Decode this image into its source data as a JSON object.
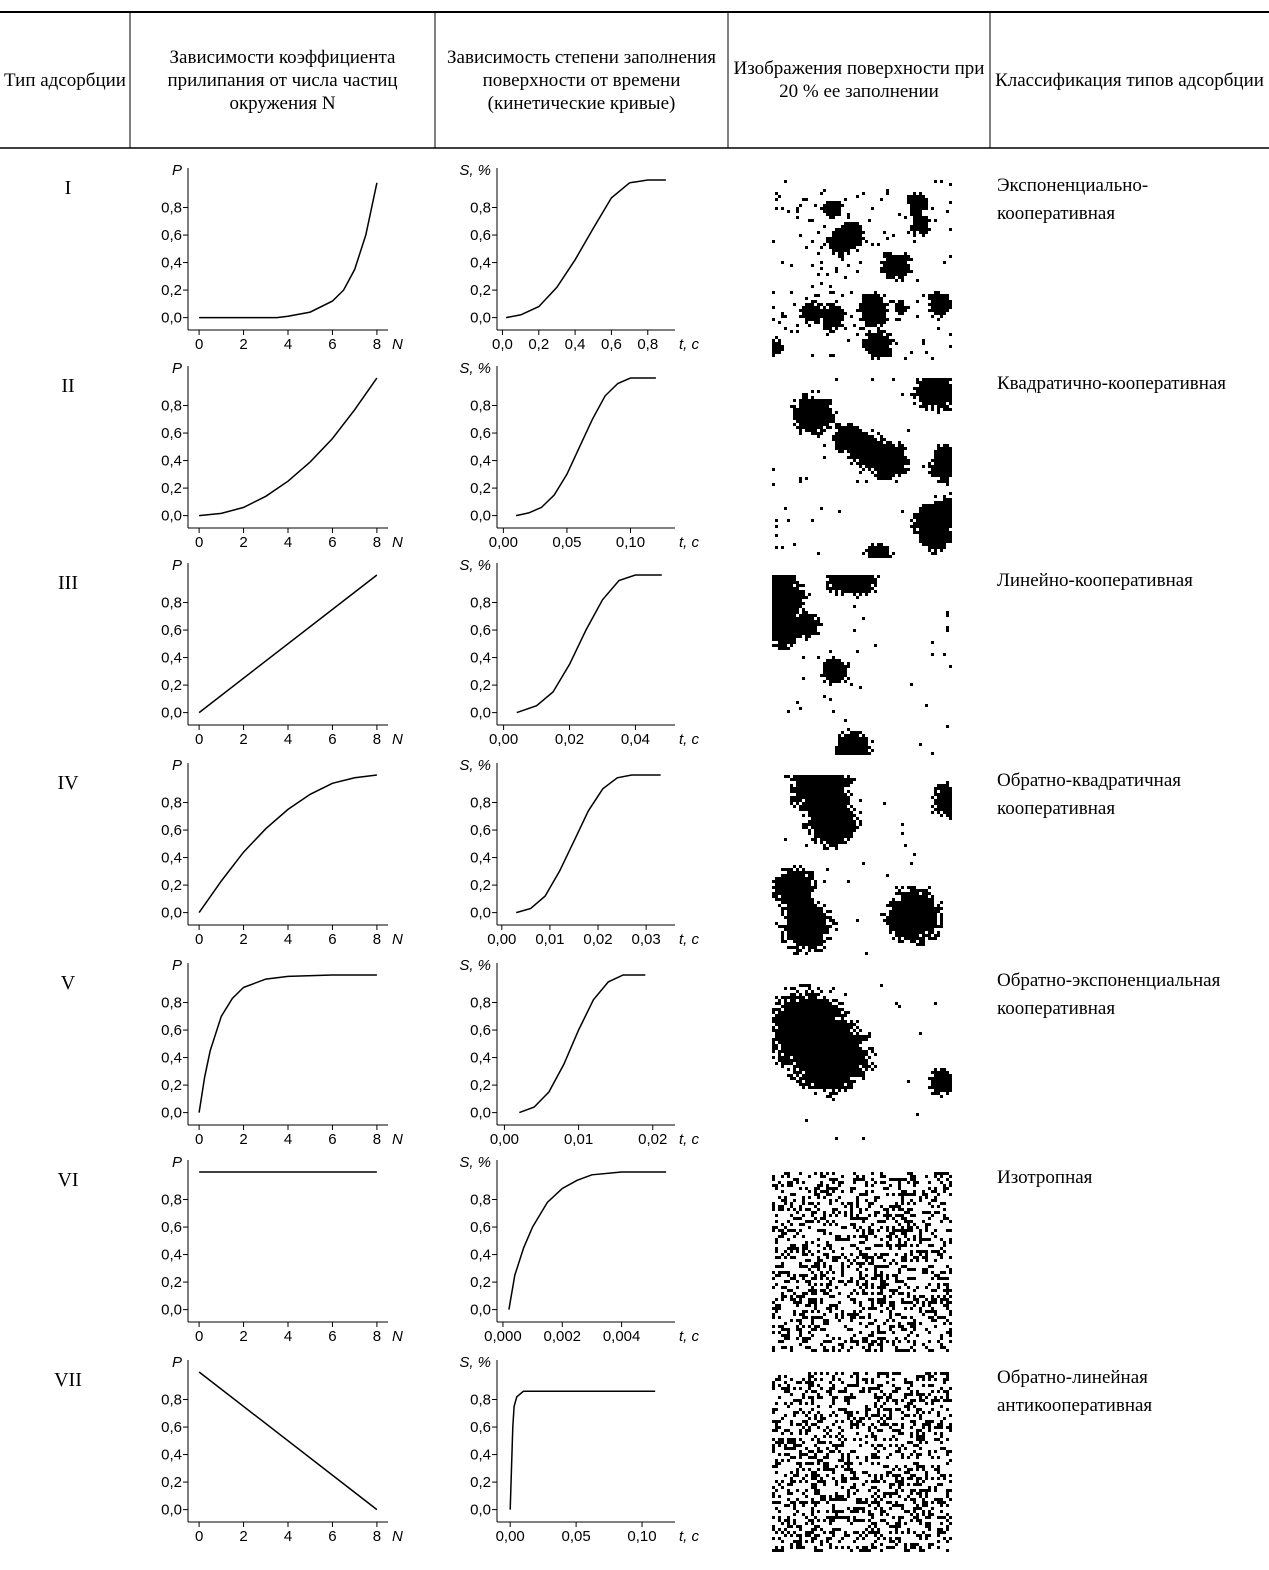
{
  "table": {
    "headers": [
      "Тип адсорбции",
      "Зависимости коэффициента прилипания от числа частиц окружения N",
      "Зависимость степени заполнения поверхности от времени (кинетические кривые)",
      "Изображения поверхности при 20 % ее заполнении",
      "Классификация типов адсорбции"
    ],
    "rows": [
      {
        "type": "I",
        "classification": "Экспоненциально-кооперативная",
        "p_chart": {
          "type": "line",
          "y_label": "P",
          "x_label": "N",
          "x": [
            0,
            2,
            3.5,
            4,
            5,
            6,
            6.5,
            7,
            7.5,
            8
          ],
          "values": [
            0,
            0,
            0,
            0.01,
            0.04,
            0.12,
            0.2,
            0.35,
            0.6,
            0.98
          ],
          "xlim": [
            -0.5,
            8.5
          ],
          "ylim": [
            -0.09,
            1.0
          ],
          "xticks": [
            0,
            2,
            4,
            6,
            8
          ],
          "yticks": [
            {
              "value": 0,
              "label": "0,0"
            },
            {
              "value": 0.2,
              "label": "0,2"
            },
            {
              "value": 0.4,
              "label": "0,4"
            },
            {
              "value": 0.6,
              "label": "0,6"
            },
            {
              "value": 0.8,
              "label": "0,8"
            }
          ]
        },
        "s_chart": {
          "type": "line",
          "y_label": "S, %",
          "x_label": "t, с",
          "x": [
            0.02,
            0.1,
            0.2,
            0.3,
            0.4,
            0.5,
            0.6,
            0.7,
            0.8,
            0.9
          ],
          "values": [
            0,
            0.02,
            0.08,
            0.22,
            0.42,
            0.65,
            0.87,
            0.98,
            1,
            1
          ],
          "xlim": [
            -0.03,
            0.95
          ],
          "ylim": [
            -0.09,
            1.0
          ],
          "xticks": [
            {
              "value": 0,
              "label": "0,0"
            },
            {
              "value": 0.2,
              "label": "0,2"
            },
            {
              "value": 0.4,
              "label": "0,4"
            },
            {
              "value": 0.6,
              "label": "0,6"
            },
            {
              "value": 0.8,
              "label": "0,8"
            }
          ],
          "yticks": [
            {
              "value": 0,
              "label": "0,0"
            },
            {
              "value": 0.2,
              "label": "0,2"
            },
            {
              "value": 0.4,
              "label": "0,4"
            },
            {
              "value": 0.6,
              "label": "0,6"
            },
            {
              "value": 0.8,
              "label": "0,8"
            }
          ]
        }
      },
      {
        "type": "II",
        "classification": "Квадратично-кооперативная",
        "p_chart": {
          "type": "line",
          "y_label": "P",
          "x_label": "N",
          "x": [
            0,
            1,
            2,
            3,
            4,
            5,
            6,
            7,
            8
          ],
          "values": [
            0,
            0.016,
            0.06,
            0.14,
            0.25,
            0.39,
            0.56,
            0.77,
            1.0
          ],
          "xlim": [
            -0.5,
            8.5
          ],
          "ylim": [
            -0.09,
            1.0
          ],
          "xticks": [
            0,
            2,
            4,
            6,
            8
          ],
          "yticks": [
            {
              "value": 0,
              "label": "0,0"
            },
            {
              "value": 0.2,
              "label": "0,2"
            },
            {
              "value": 0.4,
              "label": "0,4"
            },
            {
              "value": 0.6,
              "label": "0,6"
            },
            {
              "value": 0.8,
              "label": "0,8"
            }
          ]
        },
        "s_chart": {
          "type": "line",
          "y_label": "S, %",
          "x_label": "t, с",
          "x": [
            0.01,
            0.02,
            0.03,
            0.04,
            0.05,
            0.06,
            0.07,
            0.08,
            0.09,
            0.1,
            0.12
          ],
          "values": [
            0,
            0.02,
            0.06,
            0.15,
            0.3,
            0.5,
            0.7,
            0.87,
            0.96,
            1,
            1
          ],
          "xlim": [
            -0.005,
            0.135
          ],
          "ylim": [
            -0.09,
            1.0
          ],
          "xticks": [
            {
              "value": 0,
              "label": "0,00"
            },
            {
              "value": 0.05,
              "label": "0,05"
            },
            {
              "value": 0.1,
              "label": "0,10"
            }
          ],
          "yticks": [
            {
              "value": 0,
              "label": "0,0"
            },
            {
              "value": 0.2,
              "label": "0,2"
            },
            {
              "value": 0.4,
              "label": "0,4"
            },
            {
              "value": 0.6,
              "label": "0,6"
            },
            {
              "value": 0.8,
              "label": "0,8"
            }
          ]
        }
      },
      {
        "type": "III",
        "classification": "Линейно-кооперативная",
        "p_chart": {
          "type": "line",
          "y_label": "P",
          "x_label": "N",
          "x": [
            0,
            8
          ],
          "values": [
            0,
            1.0
          ],
          "xlim": [
            -0.5,
            8.5
          ],
          "ylim": [
            -0.09,
            1.0
          ],
          "xticks": [
            0,
            2,
            4,
            6,
            8
          ],
          "yticks": [
            {
              "value": 0,
              "label": "0,0"
            },
            {
              "value": 0.2,
              "label": "0,2"
            },
            {
              "value": 0.4,
              "label": "0,4"
            },
            {
              "value": 0.6,
              "label": "0,6"
            },
            {
              "value": 0.8,
              "label": "0,8"
            }
          ]
        },
        "s_chart": {
          "type": "line",
          "y_label": "S, %",
          "x_label": "t, с",
          "x": [
            0.004,
            0.01,
            0.015,
            0.02,
            0.025,
            0.03,
            0.035,
            0.04,
            0.048
          ],
          "values": [
            0,
            0.05,
            0.15,
            0.35,
            0.6,
            0.82,
            0.96,
            1,
            1
          ],
          "xlim": [
            -0.002,
            0.052
          ],
          "ylim": [
            -0.09,
            1.0
          ],
          "xticks": [
            {
              "value": 0,
              "label": "0,00"
            },
            {
              "value": 0.02,
              "label": "0,02"
            },
            {
              "value": 0.04,
              "label": "0,04"
            }
          ],
          "yticks": [
            {
              "value": 0,
              "label": "0,0"
            },
            {
              "value": 0.2,
              "label": "0,2"
            },
            {
              "value": 0.4,
              "label": "0,4"
            },
            {
              "value": 0.6,
              "label": "0,6"
            },
            {
              "value": 0.8,
              "label": "0,8"
            }
          ]
        }
      },
      {
        "type": "IV",
        "classification": "Обратно-квадратичная кооперативная",
        "p_chart": {
          "type": "line",
          "y_label": "P",
          "x_label": "N",
          "x": [
            0,
            1,
            2,
            3,
            4,
            5,
            6,
            7,
            8
          ],
          "values": [
            0,
            0.23,
            0.44,
            0.61,
            0.75,
            0.86,
            0.94,
            0.98,
            1.0
          ],
          "xlim": [
            -0.5,
            8.5
          ],
          "ylim": [
            -0.09,
            1.0
          ],
          "xticks": [
            0,
            2,
            4,
            6,
            8
          ],
          "yticks": [
            {
              "value": 0,
              "label": "0,0"
            },
            {
              "value": 0.2,
              "label": "0,2"
            },
            {
              "value": 0.4,
              "label": "0,4"
            },
            {
              "value": 0.6,
              "label": "0,6"
            },
            {
              "value": 0.8,
              "label": "0,8"
            }
          ]
        },
        "s_chart": {
          "type": "line",
          "y_label": "S, %",
          "x_label": "t, с",
          "x": [
            0.003,
            0.006,
            0.009,
            0.012,
            0.015,
            0.018,
            0.021,
            0.024,
            0.027,
            0.033
          ],
          "values": [
            0,
            0.03,
            0.12,
            0.3,
            0.52,
            0.74,
            0.9,
            0.98,
            1,
            1
          ],
          "xlim": [
            -0.001,
            0.036
          ],
          "ylim": [
            -0.09,
            1.0
          ],
          "xticks": [
            {
              "value": 0,
              "label": "0,00"
            },
            {
              "value": 0.01,
              "label": "0,01"
            },
            {
              "value": 0.02,
              "label": "0,02"
            },
            {
              "value": 0.03,
              "label": "0,03"
            }
          ],
          "yticks": [
            {
              "value": 0,
              "label": "0,0"
            },
            {
              "value": 0.2,
              "label": "0,2"
            },
            {
              "value": 0.4,
              "label": "0,4"
            },
            {
              "value": 0.6,
              "label": "0,6"
            },
            {
              "value": 0.8,
              "label": "0,8"
            }
          ]
        }
      },
      {
        "type": "V",
        "classification": "Обратно-экспоненциальная кооперативная",
        "p_chart": {
          "type": "line",
          "y_label": "P",
          "x_label": "N",
          "x": [
            0,
            0.25,
            0.5,
            1,
            1.5,
            2,
            3,
            4,
            6,
            8
          ],
          "values": [
            0,
            0.26,
            0.45,
            0.7,
            0.83,
            0.91,
            0.97,
            0.99,
            1,
            1
          ],
          "xlim": [
            -0.5,
            8.5
          ],
          "ylim": [
            -0.09,
            1.0
          ],
          "xticks": [
            0,
            2,
            4,
            6,
            8
          ],
          "yticks": [
            {
              "value": 0,
              "label": "0,0"
            },
            {
              "value": 0.2,
              "label": "0,2"
            },
            {
              "value": 0.4,
              "label": "0,4"
            },
            {
              "value": 0.6,
              "label": "0,6"
            },
            {
              "value": 0.8,
              "label": "0,8"
            }
          ]
        },
        "s_chart": {
          "type": "line",
          "y_label": "S, %",
          "x_label": "t, с",
          "x": [
            0.002,
            0.004,
            0.006,
            0.008,
            0.01,
            0.012,
            0.014,
            0.016,
            0.019
          ],
          "values": [
            0,
            0.04,
            0.15,
            0.35,
            0.6,
            0.82,
            0.95,
            1,
            1
          ],
          "xlim": [
            -0.001,
            0.023
          ],
          "ylim": [
            -0.09,
            1.0
          ],
          "xticks": [
            {
              "value": 0,
              "label": "0,00"
            },
            {
              "value": 0.01,
              "label": "0,01"
            },
            {
              "value": 0.02,
              "label": "0,02"
            }
          ],
          "yticks": [
            {
              "value": 0,
              "label": "0,0"
            },
            {
              "value": 0.2,
              "label": "0,2"
            },
            {
              "value": 0.4,
              "label": "0,4"
            },
            {
              "value": 0.6,
              "label": "0,6"
            },
            {
              "value": 0.8,
              "label": "0,8"
            }
          ]
        }
      },
      {
        "type": "VI",
        "classification": "Изотропная",
        "p_chart": {
          "type": "line",
          "y_label": "P",
          "x_label": "N",
          "x": [
            0,
            8
          ],
          "values": [
            1,
            1
          ],
          "xlim": [
            -0.5,
            8.5
          ],
          "ylim": [
            -0.09,
            1.0
          ],
          "xticks": [
            0,
            2,
            4,
            6,
            8
          ],
          "yticks": [
            {
              "value": 0,
              "label": "0,0"
            },
            {
              "value": 0.2,
              "label": "0,2"
            },
            {
              "value": 0.4,
              "label": "0,4"
            },
            {
              "value": 0.6,
              "label": "0,6"
            },
            {
              "value": 0.8,
              "label": "0,8"
            }
          ]
        },
        "s_chart": {
          "type": "line",
          "y_label": "S, %",
          "x_label": "t, с",
          "x": [
            0.0002,
            0.0004,
            0.0007,
            0.001,
            0.0015,
            0.002,
            0.0025,
            0.003,
            0.004,
            0.0055
          ],
          "values": [
            0,
            0.25,
            0.45,
            0.6,
            0.78,
            0.88,
            0.94,
            0.98,
            1,
            1
          ],
          "xlim": [
            -0.0002,
            0.0058
          ],
          "ylim": [
            -0.09,
            1.0
          ],
          "xticks": [
            {
              "value": 0,
              "label": "0,000"
            },
            {
              "value": 0.002,
              "label": "0,002"
            },
            {
              "value": 0.004,
              "label": "0,004"
            }
          ],
          "yticks": [
            {
              "value": 0,
              "label": "0,0"
            },
            {
              "value": 0.2,
              "label": "0,2"
            },
            {
              "value": 0.4,
              "label": "0,4"
            },
            {
              "value": 0.6,
              "label": "0,6"
            },
            {
              "value": 0.8,
              "label": "0,8"
            }
          ]
        }
      },
      {
        "type": "VII",
        "classification": "Обратно-линейная антикооперативная",
        "p_chart": {
          "type": "line",
          "y_label": "P",
          "x_label": "N",
          "x": [
            0,
            8
          ],
          "values": [
            1,
            0
          ],
          "xlim": [
            -0.5,
            8.5
          ],
          "ylim": [
            -0.09,
            1.0
          ],
          "xticks": [
            0,
            2,
            4,
            6,
            8
          ],
          "yticks": [
            {
              "value": 0,
              "label": "0,0"
            },
            {
              "value": 0.2,
              "label": "0,2"
            },
            {
              "value": 0.4,
              "label": "0,4"
            },
            {
              "value": 0.6,
              "label": "0,6"
            },
            {
              "value": 0.8,
              "label": "0,8"
            }
          ]
        },
        "s_chart": {
          "type": "line",
          "y_label": "S, %",
          "x_label": "t, с",
          "x": [
            0,
            0.001,
            0.002,
            0.003,
            0.005,
            0.01,
            0.11
          ],
          "values": [
            0,
            0.3,
            0.6,
            0.75,
            0.82,
            0.86,
            0.86
          ],
          "xlim": [
            -0.01,
            0.125
          ],
          "ylim": [
            -0.09,
            1.0
          ],
          "xticks": [
            {
              "value": 0,
              "label": "0,00"
            },
            {
              "value": 0.05,
              "label": "0,05"
            },
            {
              "value": 0.1,
              "label": "0,10"
            }
          ],
          "yticks": [
            {
              "value": 0,
              "label": "0,0"
            },
            {
              "value": 0.2,
              "label": "0,2"
            },
            {
              "value": 0.4,
              "label": "0,4"
            },
            {
              "value": 0.6,
              "label": "0,6"
            },
            {
              "value": 0.8,
              "label": "0,8"
            }
          ]
        }
      }
    ]
  }
}
